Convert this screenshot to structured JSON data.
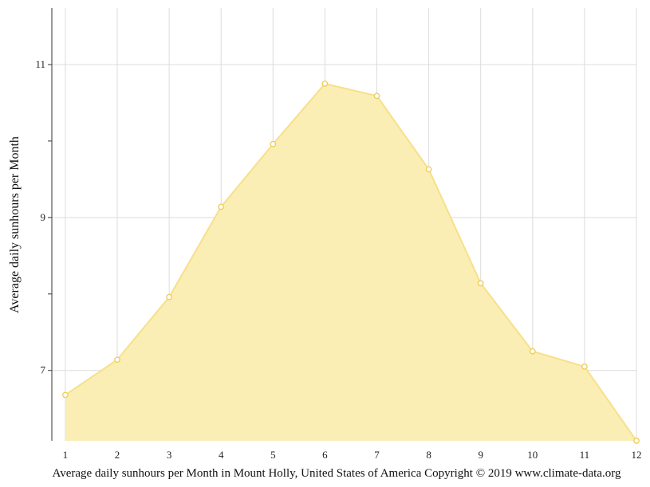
{
  "chart_data": {
    "type": "area",
    "title": "",
    "ylabel": "Average daily sunhours per Month",
    "xlabel": "",
    "caption": "Average daily sunhours per Month in Mount Holly, United States of America Copyright © 2019 www.climate-data.org",
    "x": [
      1,
      2,
      3,
      4,
      5,
      6,
      7,
      8,
      9,
      10,
      11,
      12
    ],
    "x_tick_labels": [
      "1",
      "2",
      "3",
      "4",
      "5",
      "6",
      "7",
      "8",
      "9",
      "10",
      "11",
      "12"
    ],
    "y_tick_values": [
      7,
      8,
      9,
      10,
      11
    ],
    "y_tick_labels": [
      "7",
      "",
      "9",
      "",
      "11"
    ],
    "values": [
      6.68,
      7.14,
      7.96,
      9.14,
      9.96,
      10.75,
      10.59,
      9.63,
      8.14,
      7.25,
      7.05,
      6.08
    ],
    "xlim": [
      0.74,
      12.0
    ],
    "ylim": [
      6.08,
      11.74
    ],
    "grid": true,
    "colors": {
      "fill": "#faedb0",
      "line": "#f7e08a",
      "marker_stroke": "#f0cc50",
      "marker_fill": "#ffffff",
      "grid": "#dcdcdc",
      "axis": "#333333"
    }
  }
}
